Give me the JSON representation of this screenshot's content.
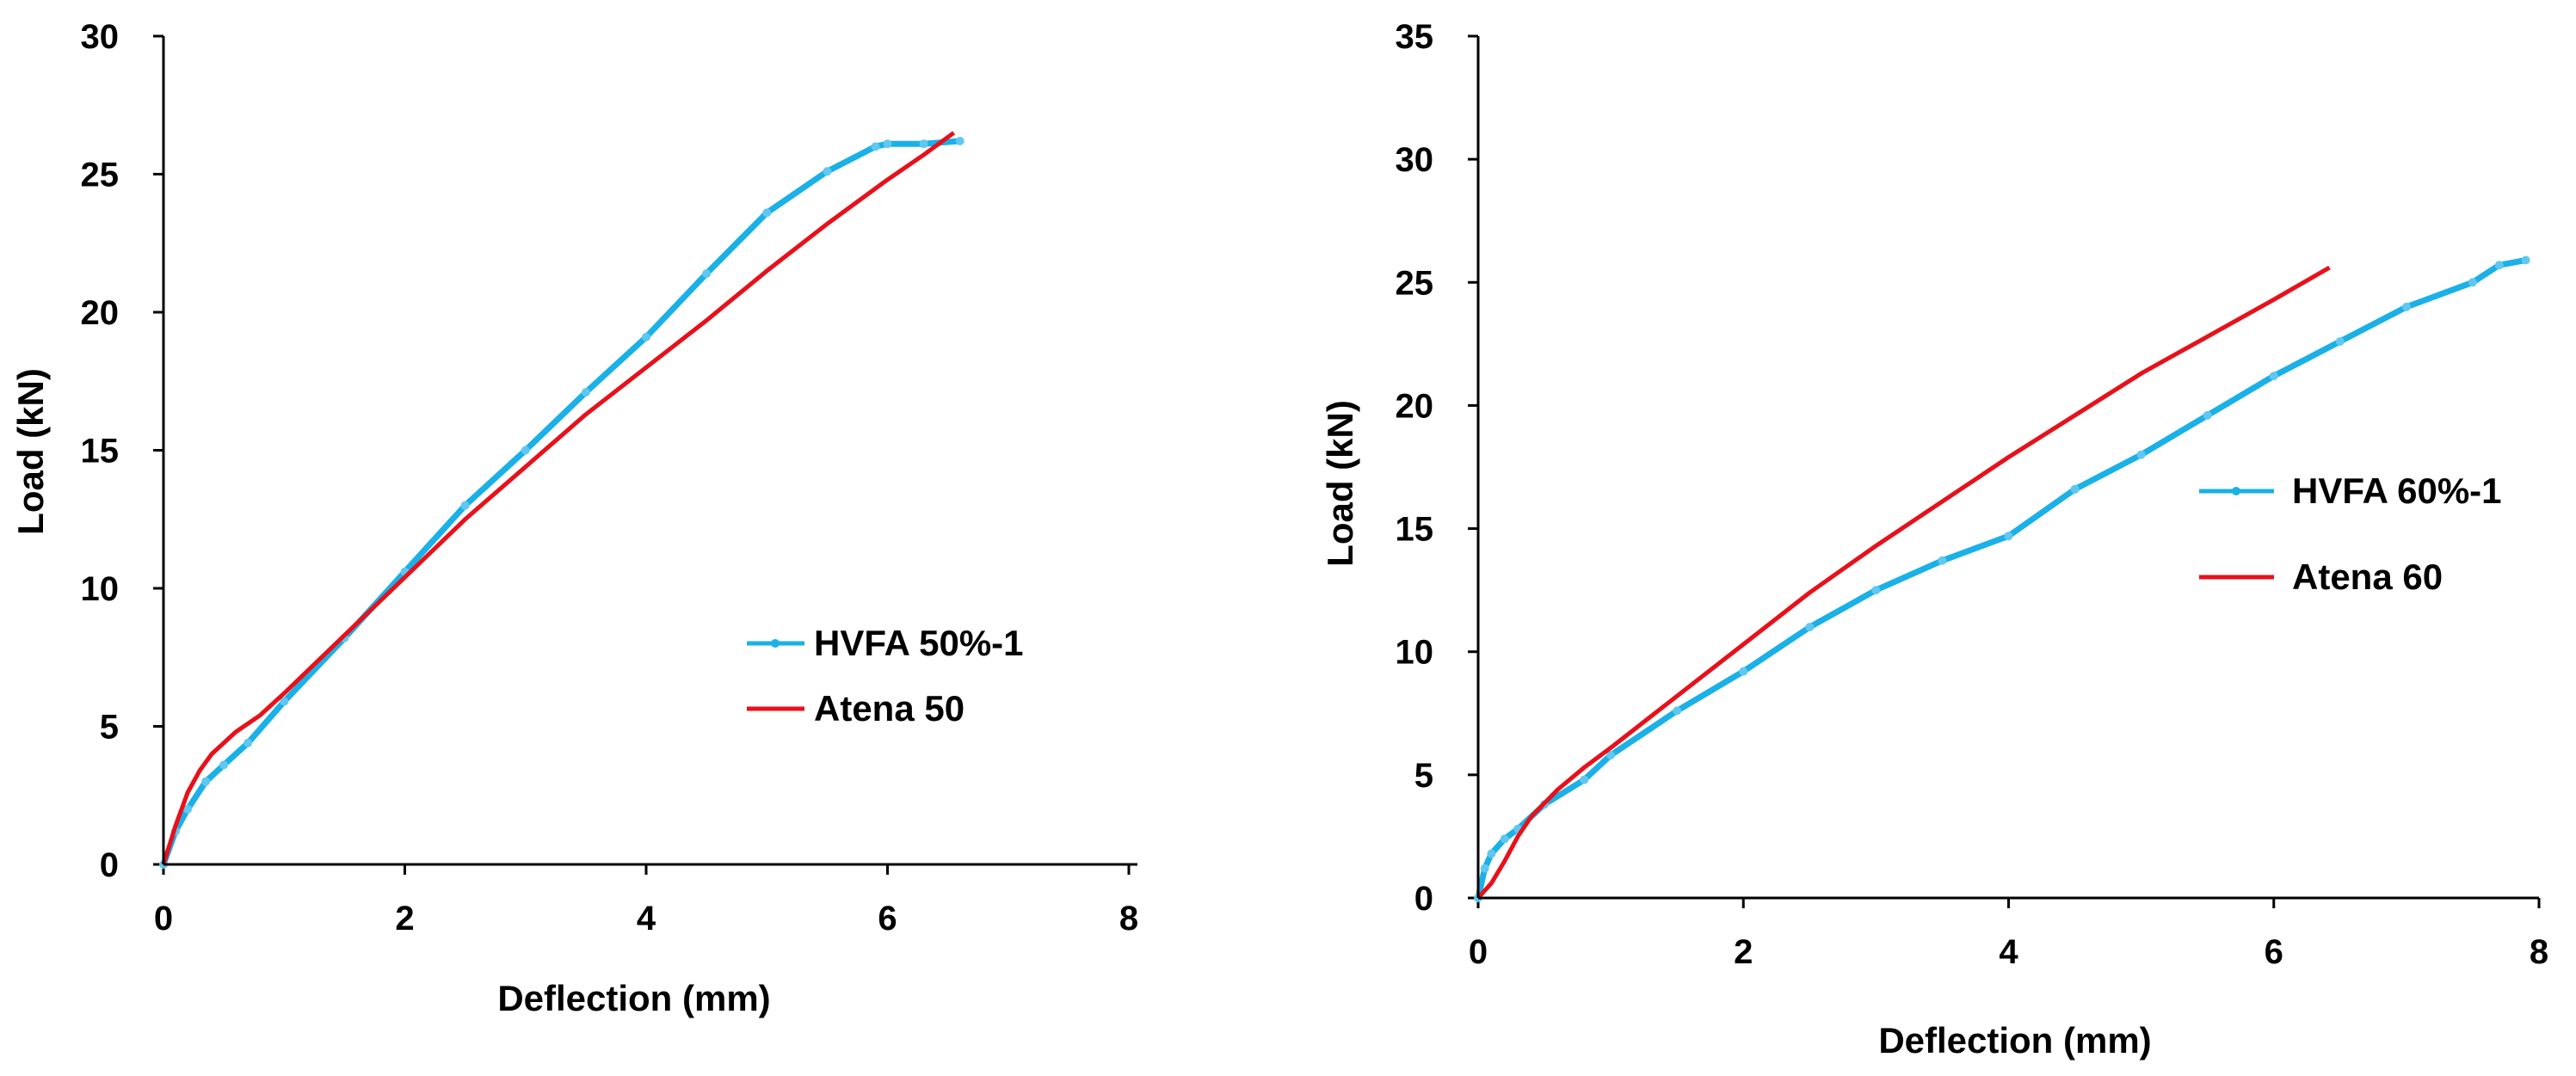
{
  "chart_data": [
    {
      "type": "line",
      "title": "",
      "xlabel": "Deflection (mm)",
      "ylabel": "Load (kN)",
      "xlim": [
        0,
        8
      ],
      "ylim": [
        0,
        30
      ],
      "xticks": [
        "0",
        "2",
        "4",
        "6",
        "8"
      ],
      "yticks": [
        "0",
        "5",
        "10",
        "15",
        "20",
        "25",
        "30"
      ],
      "grid": false,
      "legend_position": "center-right",
      "series": [
        {
          "name": "HVFA 50%-1",
          "color": "#1ab0e8",
          "marker": "dot",
          "x": [
            0,
            0.1,
            0.2,
            0.35,
            0.5,
            0.7,
            1.0,
            1.5,
            2.0,
            2.5,
            3.0,
            3.5,
            4.0,
            4.5,
            5.0,
            5.5,
            5.9,
            6.0,
            6.3,
            6.6
          ],
          "y": [
            0,
            1.2,
            2.0,
            3.0,
            3.6,
            4.4,
            5.9,
            8.2,
            10.6,
            13.0,
            15.0,
            17.1,
            19.1,
            21.4,
            23.6,
            25.1,
            26.0,
            26.1,
            26.1,
            26.2
          ]
        },
        {
          "name": "Atena 50",
          "color": "#e8101a",
          "marker": "none",
          "x": [
            0,
            0.1,
            0.2,
            0.3,
            0.4,
            0.6,
            0.8,
            1.0,
            1.5,
            2.0,
            2.5,
            3.0,
            3.5,
            4.0,
            4.5,
            5.0,
            5.5,
            6.0,
            6.3,
            6.55
          ],
          "y": [
            0,
            1.4,
            2.6,
            3.4,
            4.0,
            4.8,
            5.4,
            6.2,
            8.3,
            10.4,
            12.5,
            14.4,
            16.3,
            18.0,
            19.7,
            21.5,
            23.2,
            24.8,
            25.7,
            26.5
          ]
        }
      ]
    },
    {
      "type": "line",
      "title": "",
      "xlabel": "Deflection (mm)",
      "ylabel": "Load (kN)",
      "xlim": [
        0,
        8
      ],
      "ylim": [
        0,
        35
      ],
      "xticks": [
        "0",
        "2",
        "4",
        "6",
        "8"
      ],
      "yticks": [
        "0",
        "5",
        "10",
        "15",
        "20",
        "25",
        "30",
        "35"
      ],
      "grid": false,
      "legend_position": "center-right",
      "series": [
        {
          "name": "HVFA 60%-1",
          "color": "#1ab0e8",
          "marker": "dot",
          "x": [
            0,
            0.05,
            0.1,
            0.2,
            0.3,
            0.5,
            0.8,
            1.0,
            1.5,
            2.0,
            2.5,
            3.0,
            3.5,
            4.0,
            4.5,
            5.0,
            5.5,
            6.0,
            6.5,
            7.0,
            7.5,
            7.7,
            7.9
          ],
          "y": [
            0,
            1.2,
            1.8,
            2.4,
            2.8,
            3.8,
            4.8,
            5.8,
            7.6,
            9.2,
            11.0,
            12.5,
            13.7,
            14.7,
            16.6,
            18.0,
            19.6,
            21.2,
            22.6,
            24.0,
            25.0,
            25.7,
            25.9
          ]
        },
        {
          "name": "Atena 60",
          "color": "#e8101a",
          "marker": "none",
          "x": [
            0,
            0.1,
            0.2,
            0.3,
            0.4,
            0.6,
            0.8,
            1.0,
            1.5,
            2.0,
            2.5,
            3.0,
            3.5,
            4.0,
            4.5,
            5.0,
            5.5,
            6.0,
            6.42
          ],
          "y": [
            0,
            0.6,
            1.5,
            2.5,
            3.3,
            4.4,
            5.3,
            6.1,
            8.2,
            10.3,
            12.4,
            14.3,
            16.1,
            17.9,
            19.6,
            21.3,
            22.8,
            24.3,
            25.6
          ]
        }
      ]
    }
  ]
}
